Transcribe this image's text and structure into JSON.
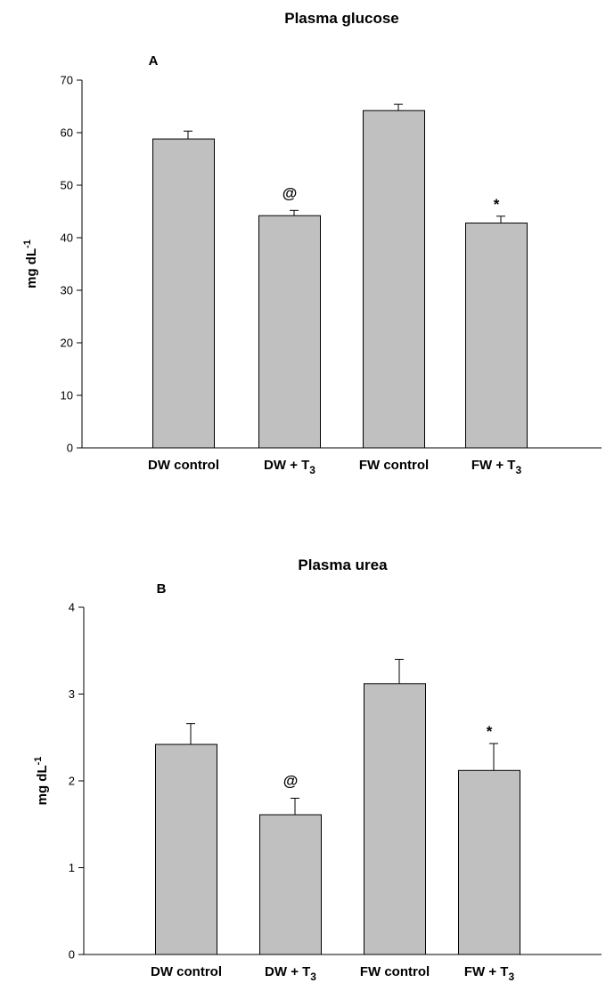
{
  "chart_data": [
    {
      "type": "bar",
      "title": "Plasma glucose",
      "panel_label": "A",
      "ylabel": "mg dL",
      "ylabel_sup": "-1",
      "ylim": [
        0,
        70
      ],
      "yticks": [
        0,
        10,
        20,
        30,
        40,
        50,
        60,
        70
      ],
      "categories": [
        {
          "main": "DW control",
          "sub": ""
        },
        {
          "main": "DW + T",
          "sub": "3"
        },
        {
          "main": "FW control",
          "sub": ""
        },
        {
          "main": "FW + T",
          "sub": "3"
        }
      ],
      "values": [
        58.8,
        44.2,
        64.2,
        42.8
      ],
      "errors": [
        1.5,
        1.0,
        1.2,
        1.3
      ],
      "annotations": [
        "",
        "@",
        "",
        "*"
      ]
    },
    {
      "type": "bar",
      "title": "Plasma urea",
      "panel_label": "B",
      "ylabel": "mg dL",
      "ylabel_sup": "-1",
      "ylim": [
        0,
        4
      ],
      "yticks": [
        0,
        1,
        2,
        3,
        4
      ],
      "categories": [
        {
          "main": "DW control",
          "sub": ""
        },
        {
          "main": "DW + T",
          "sub": "3"
        },
        {
          "main": "FW control",
          "sub": ""
        },
        {
          "main": "FW + T",
          "sub": "3"
        }
      ],
      "values": [
        2.42,
        1.61,
        3.12,
        2.12
      ],
      "errors": [
        0.24,
        0.19,
        0.28,
        0.31
      ],
      "annotations": [
        "",
        "@",
        "",
        "*"
      ]
    }
  ]
}
